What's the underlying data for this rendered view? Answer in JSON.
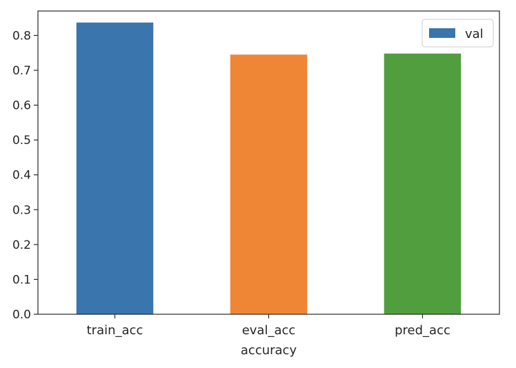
{
  "chart_data": {
    "type": "bar",
    "categories": [
      "train_acc",
      "eval_acc",
      "pred_acc"
    ],
    "series": [
      {
        "name": "val",
        "values": [
          0.837,
          0.745,
          0.748
        ],
        "colors": [
          "#3a75ae",
          "#ef8636",
          "#519e3e"
        ]
      }
    ],
    "title": "",
    "xlabel": "accuracy",
    "ylabel": "",
    "ylim": [
      0,
      0.87
    ],
    "yticks": [
      0.0,
      0.1,
      0.2,
      0.3,
      0.4,
      0.5,
      0.6,
      0.7,
      0.8
    ],
    "ytick_labels": [
      "0.0",
      "0.1",
      "0.2",
      "0.3",
      "0.4",
      "0.5",
      "0.6",
      "0.7",
      "0.8"
    ],
    "grid": false,
    "legend": {
      "position": "top-right",
      "entries": [
        "val"
      ]
    }
  }
}
